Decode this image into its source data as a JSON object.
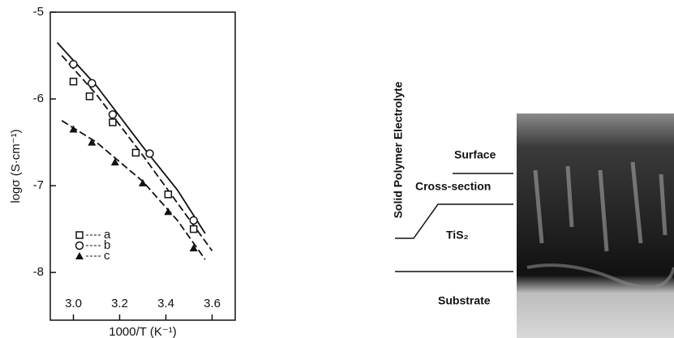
{
  "chart_data": {
    "type": "scatter",
    "x_label": "1000/T (K⁻¹)",
    "y_label": "logσ (S·cm⁻¹)",
    "xlim": [
      2.9,
      3.7
    ],
    "ylim": [
      -8.55,
      -5
    ],
    "xticks": [
      {
        "value": 3.0,
        "label": "3.0"
      },
      {
        "value": 3.2,
        "label": "3.2"
      },
      {
        "value": 3.4,
        "label": "3.4"
      },
      {
        "value": 3.6,
        "label": "3.6"
      }
    ],
    "yticks": [
      -5,
      -6,
      -7,
      -8
    ],
    "series": [
      {
        "name": "a",
        "marker": "square",
        "color": "#111111",
        "dash": true,
        "x": [
          3.0,
          3.07,
          3.17,
          3.27,
          3.41,
          3.52
        ],
        "values": [
          -5.8,
          -5.97,
          -6.27,
          -6.62,
          -7.1,
          -7.5
        ],
        "fit": {
          "x": [
            2.95,
            3.1,
            3.3,
            3.45,
            3.6
          ],
          "y": [
            -5.5,
            -5.95,
            -6.65,
            -7.2,
            -7.75
          ]
        }
      },
      {
        "name": "b",
        "marker": "circle",
        "color": "#111111",
        "dash": false,
        "x": [
          3.0,
          3.08,
          3.17,
          3.33,
          3.52
        ],
        "values": [
          -5.6,
          -5.82,
          -6.18,
          -6.63,
          -7.4
        ],
        "fit": {
          "x": [
            2.93,
            3.1,
            3.3,
            3.45,
            3.57
          ],
          "y": [
            -5.35,
            -5.85,
            -6.55,
            -7.05,
            -7.55
          ]
        }
      },
      {
        "name": "c",
        "marker": "triangle",
        "color": "#111111",
        "dash": true,
        "x": [
          3.0,
          3.08,
          3.18,
          3.3,
          3.41,
          3.52
        ],
        "values": [
          -6.35,
          -6.5,
          -6.73,
          -6.97,
          -7.3,
          -7.72
        ],
        "fit": {
          "x": [
            2.95,
            3.1,
            3.3,
            3.45,
            3.57
          ],
          "y": [
            -6.25,
            -6.5,
            -6.95,
            -7.4,
            -7.85
          ]
        }
      }
    ]
  },
  "diagram": {
    "side_label": "Solid Polymer Electrolyte",
    "surface": "Surface",
    "cross_section": "Cross-section",
    "tis2": "TiS₂",
    "substrate": "Substrate"
  }
}
